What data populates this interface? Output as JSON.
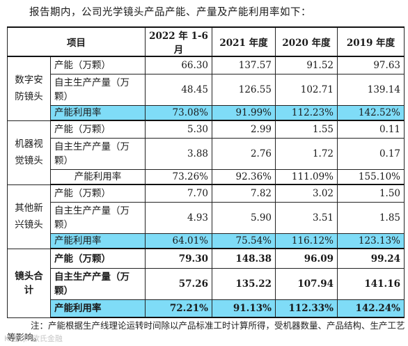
{
  "intro": "报告期内，公司光学镜头产品产能、产量及产能利用率如下：",
  "header": {
    "item": "项目",
    "periods": [
      "2022 年 1-6 月",
      "2021 年度",
      "2020 年度",
      "2019 年度"
    ]
  },
  "groups": [
    {
      "category": "数字安防镜头",
      "rows": [
        {
          "metric": "产能（万颗）",
          "values": [
            "66.30",
            "137.57",
            "91.52",
            "97.63"
          ]
        },
        {
          "metric": "自主生产产量（万颗）",
          "values": [
            "48.45",
            "126.55",
            "102.71",
            "139.14"
          ]
        },
        {
          "metric": "产能利用率",
          "values": [
            "73.08%",
            "91.99%",
            "112.23%",
            "142.52%"
          ]
        }
      ]
    },
    {
      "category": "机器视觉镜头",
      "rows": [
        {
          "metric": "产能（万颗）",
          "values": [
            "5.30",
            "2.99",
            "1.55",
            "0.11"
          ]
        },
        {
          "metric": "自主生产产量（万颗）",
          "values": [
            "3.88",
            "2.76",
            "1.72",
            "0.17"
          ]
        },
        {
          "metric": "产能利用率",
          "values": [
            "73.26%",
            "92.36%",
            "111.09%",
            "155.10%"
          ]
        }
      ]
    },
    {
      "category": "其他新兴镜头",
      "rows": [
        {
          "metric": "产能（万颗）",
          "values": [
            "7.70",
            "7.82",
            "3.02",
            "1.50"
          ]
        },
        {
          "metric": "自主生产产量（万颗）",
          "values": [
            "4.93",
            "5.90",
            "3.51",
            "1.85"
          ]
        },
        {
          "metric": "产能利用率",
          "values": [
            "64.01%",
            "75.54%",
            "116.12%",
            "123.13%"
          ]
        }
      ]
    }
  ],
  "total": {
    "category": "镜头合计",
    "rows": [
      {
        "metric": "产能（万颗）",
        "values": [
          "79.30",
          "148.38",
          "96.09",
          "99.24"
        ]
      },
      {
        "metric": "自主生产产量（万颗）",
        "values": [
          "57.26",
          "135.22",
          "107.94",
          "141.16"
        ]
      },
      {
        "metric": "产能利用率",
        "values": [
          "72.21%",
          "91.13%",
          "112.33%",
          "142.24%"
        ]
      }
    ]
  },
  "note": "注：产能根据生产线理论运转时间除以产品标准工时计算所得，受机器数量、产品结构、生产工艺等影响。",
  "watermark": "K 雪球: 欧氏金融",
  "colors": {
    "highlight": "#7fdcf7"
  }
}
